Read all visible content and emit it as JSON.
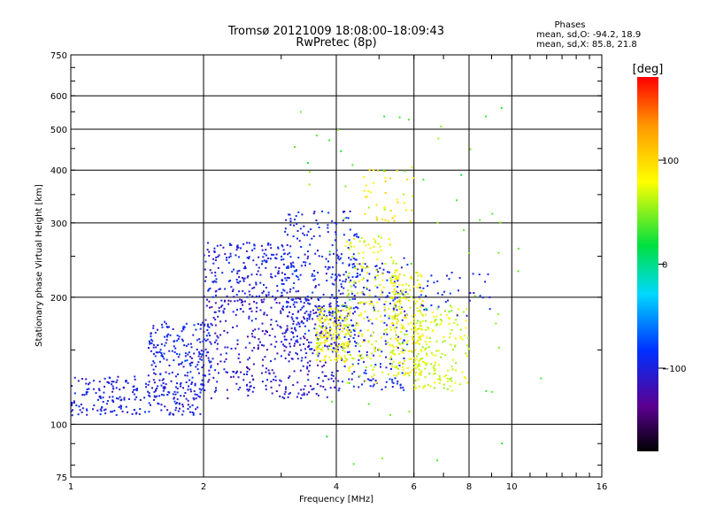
{
  "chart_data": {
    "type": "scatter",
    "title": "Tromsø 20121009 18:08:00–18:09:43",
    "subtitle": "RwPretec (8p)",
    "stats": {
      "heading": "Phases",
      "line1": "mean, sd,O: -94.2, 18.9",
      "line2": "mean, sd,X:  85.8, 21.8"
    },
    "xlabel": "Frequency [MHz]",
    "ylabel": "Stationary phase Virtual Height [km]",
    "x_scale": "log",
    "y_scale": "log",
    "xlim": [
      1,
      16
    ],
    "ylim": [
      75,
      750
    ],
    "x_ticks": [
      1,
      2,
      4,
      6,
      8,
      10,
      16
    ],
    "y_ticks": [
      75,
      100,
      200,
      300,
      400,
      500,
      600,
      750
    ],
    "x_grid": [
      2,
      4,
      6,
      8,
      10
    ],
    "y_grid": [
      100,
      200,
      300,
      400,
      500,
      600
    ],
    "grid": true,
    "colorbar": {
      "label": "[deg]",
      "min": -180,
      "max": 180,
      "ticks": [
        100,
        0,
        -100
      ],
      "tick_labels": [
        "100",
        "0",
        "−100"
      ],
      "placement": "right"
    },
    "series": [
      {
        "color_deg": -100,
        "freq_range": [
          1.0,
          2.0
        ],
        "height_range": [
          105,
          130
        ],
        "count": 260
      },
      {
        "color_deg": -95,
        "freq_range": [
          1.5,
          2.1
        ],
        "height_range": [
          130,
          175
        ],
        "count": 170
      },
      {
        "color_deg": -100,
        "freq_range": [
          2.0,
          3.2
        ],
        "height_range": [
          200,
          270
        ],
        "count": 200
      },
      {
        "color_deg": -110,
        "freq_range": [
          2.0,
          4.0
        ],
        "height_range": [
          115,
          200
        ],
        "count": 420
      },
      {
        "color_deg": -95,
        "freq_range": [
          3.0,
          4.5
        ],
        "height_range": [
          150,
          320
        ],
        "count": 300
      },
      {
        "color_deg": -95,
        "freq_range": [
          4.0,
          5.8
        ],
        "height_range": [
          120,
          250
        ],
        "count": 220
      },
      {
        "color_deg": 80,
        "freq_range": [
          3.6,
          4.3
        ],
        "height_range": [
          140,
          190
        ],
        "count": 170
      },
      {
        "color_deg": 75,
        "freq_range": [
          4.2,
          5.5
        ],
        "height_range": [
          125,
          280
        ],
        "count": 200
      },
      {
        "color_deg": 80,
        "freq_range": [
          5.3,
          6.3
        ],
        "height_range": [
          130,
          230
        ],
        "count": 220
      },
      {
        "color_deg": 70,
        "freq_range": [
          6.0,
          8.0
        ],
        "height_range": [
          120,
          190
        ],
        "count": 160
      },
      {
        "color_deg": 90,
        "freq_range": [
          4.6,
          6.0
        ],
        "height_range": [
          300,
          410
        ],
        "count": 40
      },
      {
        "color_deg": -90,
        "freq_range": [
          6.0,
          9.0
        ],
        "height_range": [
          180,
          230
        ],
        "count": 40
      },
      {
        "color_deg": 40,
        "freq_range": [
          3.2,
          12.0
        ],
        "height_range": [
          80,
          600
        ],
        "count": 70
      }
    ]
  }
}
